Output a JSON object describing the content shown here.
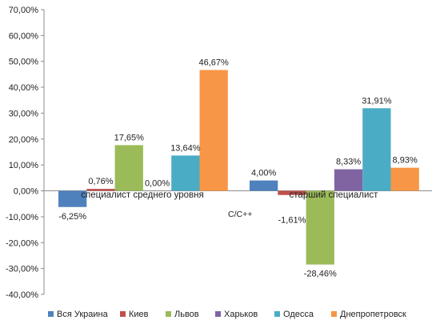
{
  "chart_data": {
    "type": "bar",
    "categories": [
      "специалист среднего уровня",
      "старший специалист"
    ],
    "series": [
      {
        "name": "Вся Украина",
        "color": "#4f81bd",
        "values": [
          -6.25,
          4.0
        ],
        "labels": [
          "-6,25%",
          "4,00%"
        ]
      },
      {
        "name": "Киев",
        "color": "#c0504d",
        "values": [
          0.76,
          -1.61
        ],
        "labels": [
          "0,76%",
          "-1,61%"
        ]
      },
      {
        "name": "Львов",
        "color": "#9bbb59",
        "values": [
          17.65,
          -28.46
        ],
        "labels": [
          "17,65%",
          "-28,46%"
        ]
      },
      {
        "name": "Харьков",
        "color": "#8064a2",
        "values": [
          0.0,
          8.33
        ],
        "labels": [
          "0,00%",
          "8,33%"
        ]
      },
      {
        "name": "Одесса",
        "color": "#4bacc6",
        "values": [
          13.64,
          31.91
        ],
        "labels": [
          "13,64%",
          "31,91%"
        ]
      },
      {
        "name": "Днепропетровск",
        "color": "#f79646",
        "values": [
          46.67,
          8.93
        ],
        "labels": [
          "46,67%",
          "8,93%"
        ]
      }
    ],
    "ylim": [
      -40,
      70
    ],
    "y_ticks": [
      70,
      60,
      50,
      40,
      30,
      20,
      10,
      0,
      -10,
      -20,
      -30,
      -40
    ],
    "y_tick_labels": [
      "70,00%",
      "60,00%",
      "50,00%",
      "40,00%",
      "30,00%",
      "20,00%",
      "10,00%",
      "0,00%",
      "-10,00%",
      "-20,00%",
      "-30,00%",
      "-40,00%"
    ],
    "annotation": "C/C++",
    "legend_position": "bottom",
    "title": "",
    "xlabel": "",
    "ylabel": ""
  }
}
